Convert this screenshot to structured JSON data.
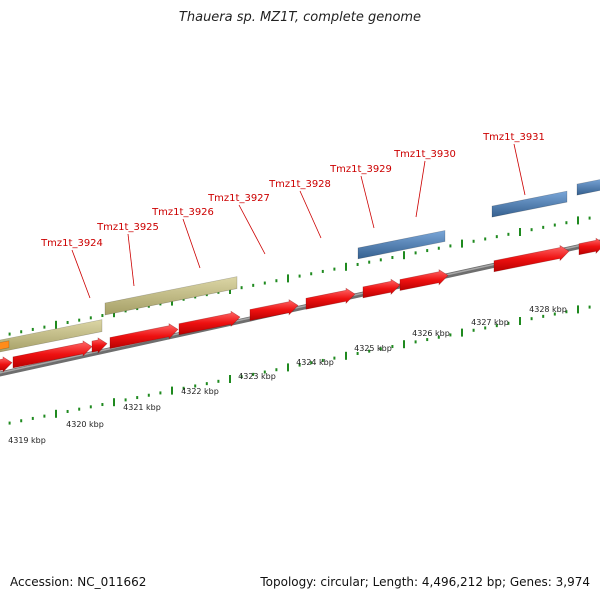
{
  "title": "Thauera sp. MZ1T, complete genome",
  "footer": {
    "accession": "Accession: NC_011662",
    "stats": "Topology: circular; Length: 4,496,212 bp; Genes: 3,974"
  },
  "colors": {
    "cds": "#e8141c",
    "gene_olive": "#c2bb85",
    "gene_blue": "#4a7ab3",
    "orange": "#ff8c1a",
    "backbone": "#8a8a8a",
    "tick": "#1f8a1f",
    "label": "#cc0000"
  },
  "gene_labels": [
    "Tmz1t_3924",
    "Tmz1t_3925",
    "Tmz1t_3926",
    "Tmz1t_3927",
    "Tmz1t_3928",
    "Tmz1t_3929",
    "Tmz1t_3930",
    "Tmz1t_3931"
  ],
  "kbp_labels": [
    "4319 kbp",
    "4320 kbp",
    "4321 kbp",
    "4322 kbp",
    "4323 kbp",
    "4324 kbp",
    "4325 kbp",
    "4326 kbp",
    "4327 kbp",
    "4328 kbp"
  ]
}
